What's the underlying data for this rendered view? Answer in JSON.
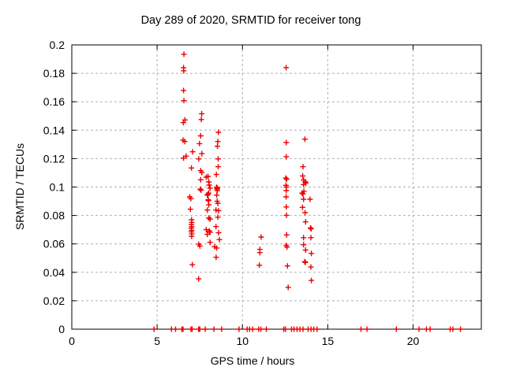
{
  "window": {
    "kind": "plot-image"
  },
  "chart_data": {
    "type": "scatter",
    "title": "Day 289 of 2020, SRMTID for receiver tong",
    "xlabel": "GPS time / hours",
    "ylabel": "SRMTID / TECUs",
    "xlim": [
      0,
      24
    ],
    "ylim": [
      0,
      0.2
    ],
    "xticks": [
      0,
      5,
      10,
      15,
      20
    ],
    "xtick_labels": [
      "0",
      "5",
      "10",
      "15",
      "20"
    ],
    "yticks": [
      0,
      0.02,
      0.04,
      0.06,
      0.08,
      0.1,
      0.12,
      0.14,
      0.16,
      0.18,
      0.2
    ],
    "ytick_labels": [
      "0",
      "0.02",
      "0.04",
      "0.06",
      "0.08",
      "0.1",
      "0.12",
      "0.14",
      "0.16",
      "0.18",
      "0.2"
    ],
    "grid": true,
    "legend": false,
    "marker": "plus",
    "marker_color": "#ee0000",
    "grid_color": "#b0b0b0",
    "border_color": "#000000",
    "background": "#ffffff",
    "points": [
      [
        6.57,
        0.1934
      ],
      [
        6.55,
        0.184
      ],
      [
        6.56,
        0.1818
      ],
      [
        6.55,
        0.1679
      ],
      [
        6.57,
        0.1608
      ],
      [
        6.63,
        0.1472
      ],
      [
        6.54,
        0.1453
      ],
      [
        6.52,
        0.133
      ],
      [
        6.62,
        0.132
      ],
      [
        6.7,
        0.1217
      ],
      [
        6.55,
        0.1204
      ],
      [
        7.08,
        0.1248
      ],
      [
        7.01,
        0.1134
      ],
      [
        6.91,
        0.0931
      ],
      [
        6.98,
        0.0918
      ],
      [
        6.95,
        0.0844
      ],
      [
        7.02,
        0.077
      ],
      [
        7.03,
        0.0752
      ],
      [
        7.01,
        0.0737
      ],
      [
        7.03,
        0.0722
      ],
      [
        7.0,
        0.0711
      ],
      [
        7.03,
        0.0696
      ],
      [
        7.01,
        0.0685
      ],
      [
        7.03,
        0.067
      ],
      [
        7.02,
        0.0654
      ],
      [
        7.06,
        0.0454
      ],
      [
        7.43,
        0.0354
      ],
      [
        7.61,
        0.1516
      ],
      [
        7.59,
        0.1475
      ],
      [
        7.55,
        0.136
      ],
      [
        7.48,
        0.1305
      ],
      [
        7.62,
        0.1235
      ],
      [
        7.44,
        0.1198
      ],
      [
        7.55,
        0.1115
      ],
      [
        7.62,
        0.1102
      ],
      [
        7.55,
        0.1051
      ],
      [
        7.53,
        0.0985
      ],
      [
        7.57,
        0.0978
      ],
      [
        7.51,
        0.0585
      ],
      [
        7.44,
        0.0598
      ],
      [
        7.88,
        0.1069
      ],
      [
        7.98,
        0.1075
      ],
      [
        8.03,
        0.1036
      ],
      [
        8.05,
        0.1014
      ],
      [
        8.1,
        0.0991
      ],
      [
        8.02,
        0.0958
      ],
      [
        7.94,
        0.0943
      ],
      [
        7.98,
        0.0949
      ],
      [
        7.99,
        0.091
      ],
      [
        8.01,
        0.0904
      ],
      [
        8.03,
        0.0875
      ],
      [
        7.94,
        0.0838
      ],
      [
        8.03,
        0.0783
      ],
      [
        8.1,
        0.0774
      ],
      [
        7.88,
        0.07
      ],
      [
        8.1,
        0.0681
      ],
      [
        8.06,
        0.0691
      ],
      [
        7.94,
        0.0667
      ],
      [
        8.1,
        0.0611
      ],
      [
        8.59,
        0.1385
      ],
      [
        8.56,
        0.132
      ],
      [
        8.53,
        0.1287
      ],
      [
        8.58,
        0.1198
      ],
      [
        8.58,
        0.1143
      ],
      [
        8.47,
        0.1088
      ],
      [
        8.48,
        0.0999
      ],
      [
        8.53,
        0.0993
      ],
      [
        8.51,
        0.0986
      ],
      [
        8.53,
        0.0975
      ],
      [
        8.49,
        0.0943
      ],
      [
        8.52,
        0.09
      ],
      [
        8.56,
        0.0885
      ],
      [
        8.45,
        0.0838
      ],
      [
        8.6,
        0.0833
      ],
      [
        8.56,
        0.0788
      ],
      [
        8.45,
        0.0722
      ],
      [
        8.6,
        0.0678
      ],
      [
        8.65,
        0.063
      ],
      [
        8.37,
        0.058
      ],
      [
        8.49,
        0.0571
      ],
      [
        8.46,
        0.0506
      ],
      [
        11.1,
        0.0648
      ],
      [
        11.02,
        0.0561
      ],
      [
        11.02,
        0.0539
      ],
      [
        10.99,
        0.045
      ],
      [
        12.56,
        0.184
      ],
      [
        12.57,
        0.1313
      ],
      [
        12.57,
        0.1213
      ],
      [
        12.54,
        0.1063
      ],
      [
        12.59,
        0.1055
      ],
      [
        12.55,
        0.1012
      ],
      [
        12.58,
        0.1
      ],
      [
        12.57,
        0.0975
      ],
      [
        12.56,
        0.0931
      ],
      [
        12.57,
        0.086
      ],
      [
        12.58,
        0.0801
      ],
      [
        12.59,
        0.0663
      ],
      [
        12.57,
        0.059
      ],
      [
        12.61,
        0.0578
      ],
      [
        12.64,
        0.0445
      ],
      [
        12.68,
        0.0294
      ],
      [
        13.66,
        0.1337
      ],
      [
        13.55,
        0.1143
      ],
      [
        13.53,
        0.1078
      ],
      [
        13.58,
        0.105
      ],
      [
        13.68,
        0.1036
      ],
      [
        13.72,
        0.1028
      ],
      [
        13.58,
        0.1017
      ],
      [
        13.6,
        0.097
      ],
      [
        13.5,
        0.0958
      ],
      [
        13.55,
        0.0951
      ],
      [
        13.58,
        0.0914
      ],
      [
        13.96,
        0.0914
      ],
      [
        13.52,
        0.0857
      ],
      [
        13.67,
        0.082
      ],
      [
        13.7,
        0.0755
      ],
      [
        13.99,
        0.0712
      ],
      [
        14.03,
        0.0706
      ],
      [
        13.58,
        0.0644
      ],
      [
        14.01,
        0.0644
      ],
      [
        13.58,
        0.0594
      ],
      [
        13.7,
        0.0557
      ],
      [
        14.04,
        0.0533
      ],
      [
        13.65,
        0.0475
      ],
      [
        13.69,
        0.0469
      ],
      [
        14.01,
        0.0437
      ],
      [
        14.04,
        0.0343
      ]
    ],
    "zero_marker_hours": [
      4.82,
      5.84,
      6.08,
      6.45,
      6.52,
      6.98,
      7.05,
      7.43,
      7.5,
      7.82,
      8.33,
      8.78,
      9.8,
      10.28,
      10.42,
      10.6,
      10.95,
      11.08,
      11.4,
      12.42,
      12.52,
      12.88,
      13.02,
      13.2,
      13.37,
      13.55,
      13.85,
      14.02,
      14.18,
      14.37,
      16.95,
      17.3,
      19.02,
      20.35,
      20.78,
      21.0,
      22.18,
      22.33,
      22.78
    ]
  }
}
